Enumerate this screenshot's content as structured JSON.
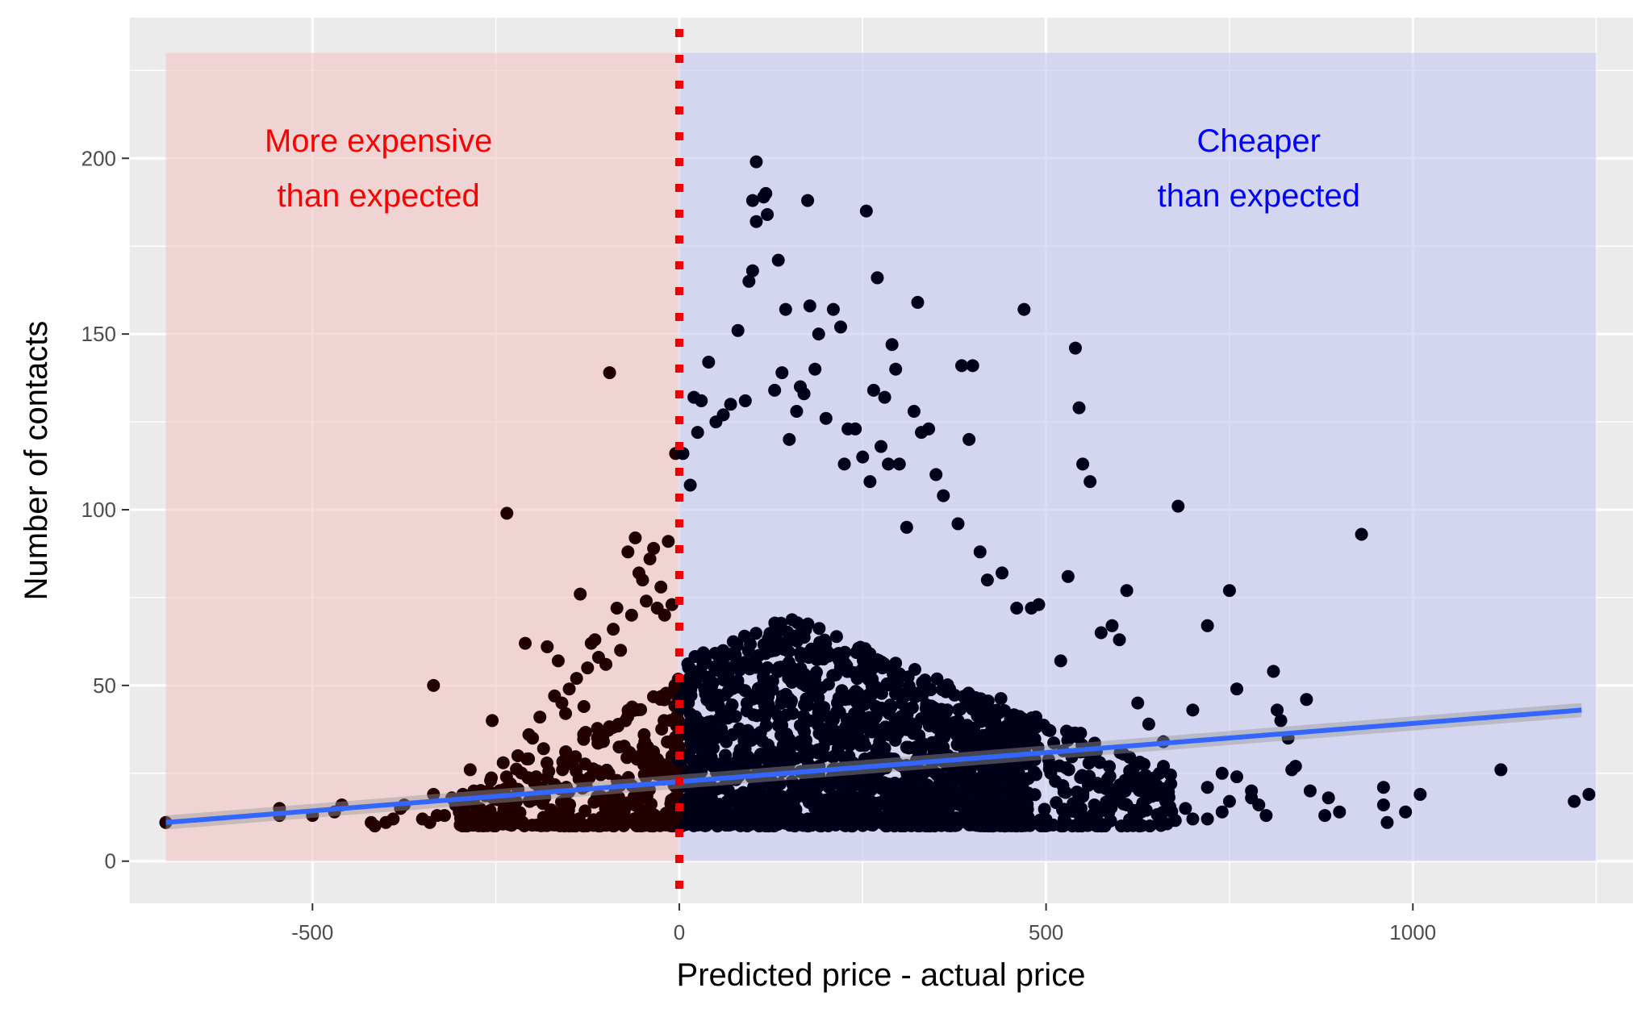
{
  "chart_data": {
    "type": "scatter",
    "xlabel": "Predicted price - actual price",
    "ylabel": "Number of contacts",
    "xlim": [
      -750,
      1300
    ],
    "ylim": [
      -12,
      240
    ],
    "x_ticks": [
      -500,
      0,
      500,
      1000
    ],
    "x_tick_labels": [
      "-500",
      "0",
      "500",
      "1000"
    ],
    "y_ticks": [
      0,
      50,
      100,
      150,
      200
    ],
    "y_tick_labels": [
      "0",
      "50",
      "100",
      "150",
      "200"
    ],
    "grid": true,
    "legend": "none",
    "colors": {
      "panel_background": "#ebebeb",
      "gridline": "#ffffff",
      "expensive_region": "#f4c4c4",
      "cheaper_region": "#c4c7f0",
      "expensive_text": "#ff0000",
      "cheaper_text": "#0000ff",
      "points_left": "#220000",
      "points_right": "#000018",
      "trend_line": "#3366ff",
      "trend_band": "#999999",
      "vline": "#ee0000"
    },
    "regions": [
      {
        "x_range": [
          -700,
          0
        ],
        "y_range": [
          0,
          230
        ],
        "label_lines": [
          "More expensive",
          "than expected"
        ],
        "label_x": -410,
        "label_y": 206,
        "side": "left"
      },
      {
        "x_range": [
          0,
          1250
        ],
        "y_range": [
          0,
          230
        ],
        "label_lines": [
          "Cheaper",
          "than expected"
        ],
        "label_x": 790,
        "label_y": 206,
        "side": "right"
      }
    ],
    "vline_x": 0,
    "trend": {
      "x": [
        -700,
        1230
      ],
      "y": [
        11,
        43
      ]
    },
    "points": [
      [
        -700,
        11
      ],
      [
        -545,
        15
      ],
      [
        -545,
        13
      ],
      [
        -500,
        13
      ],
      [
        -470,
        14
      ],
      [
        -460,
        16
      ],
      [
        -420,
        11
      ],
      [
        -415,
        10
      ],
      [
        -400,
        11
      ],
      [
        -390,
        12
      ],
      [
        -380,
        15
      ],
      [
        -375,
        16
      ],
      [
        -350,
        12
      ],
      [
        -340,
        11
      ],
      [
        -335,
        19
      ],
      [
        -330,
        13
      ],
      [
        -335,
        50
      ],
      [
        -320,
        13
      ],
      [
        -310,
        18
      ],
      [
        -305,
        16
      ],
      [
        -300,
        14
      ],
      [
        -295,
        19
      ],
      [
        -285,
        26
      ],
      [
        -280,
        20
      ],
      [
        -275,
        13
      ],
      [
        -270,
        11
      ],
      [
        -260,
        20
      ],
      [
        -255,
        40
      ],
      [
        -250,
        18
      ],
      [
        -240,
        28
      ],
      [
        -235,
        99
      ],
      [
        -230,
        22
      ],
      [
        -225,
        17
      ],
      [
        -220,
        30
      ],
      [
        -210,
        62
      ],
      [
        -205,
        36
      ],
      [
        -200,
        35
      ],
      [
        -195,
        24
      ],
      [
        -190,
        41
      ],
      [
        -185,
        32
      ],
      [
        -180,
        61
      ],
      [
        -170,
        47
      ],
      [
        -165,
        57
      ],
      [
        -160,
        45
      ],
      [
        -155,
        42
      ],
      [
        -150,
        49
      ],
      [
        -140,
        52
      ],
      [
        -135,
        76
      ],
      [
        -130,
        44
      ],
      [
        -125,
        55
      ],
      [
        -120,
        62
      ],
      [
        -115,
        63
      ],
      [
        -110,
        58
      ],
      [
        -100,
        56
      ],
      [
        -95,
        139
      ],
      [
        -90,
        66
      ],
      [
        -85,
        72
      ],
      [
        -80,
        60
      ],
      [
        -70,
        88
      ],
      [
        -65,
        70
      ],
      [
        -60,
        92
      ],
      [
        -55,
        82
      ],
      [
        -50,
        80
      ],
      [
        -45,
        74
      ],
      [
        -40,
        86
      ],
      [
        -35,
        89
      ],
      [
        -30,
        72
      ],
      [
        -25,
        78
      ],
      [
        -20,
        70
      ],
      [
        -15,
        91
      ],
      [
        -10,
        73
      ],
      [
        -5,
        116
      ],
      [
        5,
        116
      ],
      [
        15,
        107
      ],
      [
        20,
        132
      ],
      [
        25,
        122
      ],
      [
        30,
        131
      ],
      [
        40,
        142
      ],
      [
        50,
        125
      ],
      [
        60,
        127
      ],
      [
        70,
        130
      ],
      [
        80,
        151
      ],
      [
        90,
        131
      ],
      [
        95,
        165
      ],
      [
        100,
        168
      ],
      [
        100,
        188
      ],
      [
        105,
        199
      ],
      [
        105,
        182
      ],
      [
        115,
        189
      ],
      [
        118,
        190
      ],
      [
        120,
        184
      ],
      [
        130,
        134
      ],
      [
        135,
        171
      ],
      [
        140,
        139
      ],
      [
        145,
        157
      ],
      [
        150,
        120
      ],
      [
        160,
        128
      ],
      [
        165,
        135
      ],
      [
        170,
        133
      ],
      [
        175,
        188
      ],
      [
        178,
        158
      ],
      [
        185,
        140
      ],
      [
        190,
        150
      ],
      [
        200,
        126
      ],
      [
        210,
        157
      ],
      [
        220,
        152
      ],
      [
        225,
        113
      ],
      [
        230,
        123
      ],
      [
        240,
        123
      ],
      [
        250,
        115
      ],
      [
        255,
        185
      ],
      [
        260,
        108
      ],
      [
        265,
        134
      ],
      [
        270,
        166
      ],
      [
        275,
        118
      ],
      [
        280,
        132
      ],
      [
        285,
        113
      ],
      [
        290,
        147
      ],
      [
        295,
        140
      ],
      [
        300,
        113
      ],
      [
        310,
        95
      ],
      [
        320,
        128
      ],
      [
        325,
        159
      ],
      [
        330,
        122
      ],
      [
        340,
        123
      ],
      [
        350,
        110
      ],
      [
        360,
        104
      ],
      [
        380,
        96
      ],
      [
        385,
        141
      ],
      [
        395,
        120
      ],
      [
        400,
        141
      ],
      [
        410,
        88
      ],
      [
        420,
        80
      ],
      [
        440,
        82
      ],
      [
        460,
        72
      ],
      [
        470,
        157
      ],
      [
        480,
        72
      ],
      [
        490,
        73
      ],
      [
        520,
        57
      ],
      [
        530,
        81
      ],
      [
        540,
        146
      ],
      [
        545,
        129
      ],
      [
        550,
        113
      ],
      [
        560,
        108
      ],
      [
        575,
        65
      ],
      [
        590,
        67
      ],
      [
        600,
        63
      ],
      [
        610,
        77
      ],
      [
        625,
        45
      ],
      [
        640,
        39
      ],
      [
        660,
        34
      ],
      [
        680,
        101
      ],
      [
        700,
        43
      ],
      [
        720,
        67
      ],
      [
        750,
        77
      ],
      [
        760,
        49
      ],
      [
        780,
        20
      ],
      [
        800,
        13
      ],
      [
        810,
        54
      ],
      [
        815,
        43
      ],
      [
        820,
        40
      ],
      [
        830,
        35
      ],
      [
        835,
        26
      ],
      [
        840,
        27
      ],
      [
        855,
        46
      ],
      [
        860,
        20
      ],
      [
        880,
        13
      ],
      [
        885,
        18
      ],
      [
        900,
        14
      ],
      [
        930,
        93
      ],
      [
        960,
        21
      ],
      [
        960,
        16
      ],
      [
        965,
        11
      ],
      [
        990,
        14
      ],
      [
        1010,
        19
      ],
      [
        1120,
        26
      ],
      [
        1220,
        17
      ],
      [
        1240,
        19
      ],
      [
        700,
        12
      ],
      [
        720,
        21
      ],
      [
        740,
        25
      ],
      [
        760,
        24
      ],
      [
        780,
        18
      ],
      [
        790,
        16
      ],
      [
        660,
        27
      ],
      [
        670,
        22
      ],
      [
        690,
        15
      ],
      [
        720,
        12
      ],
      [
        740,
        14
      ],
      [
        750,
        17
      ],
      [
        630,
        14
      ],
      [
        610,
        16
      ]
    ]
  }
}
